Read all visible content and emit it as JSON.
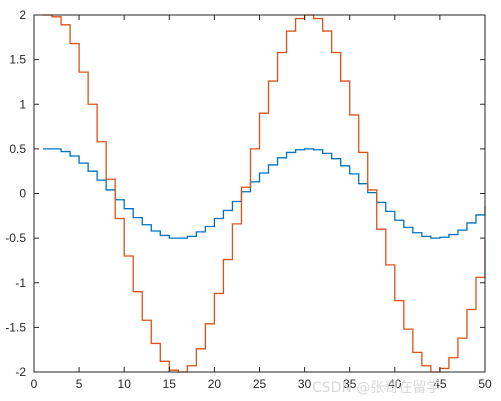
{
  "chart_data": {
    "type": "line",
    "style": "stairs",
    "x": [
      1,
      2,
      3,
      4,
      5,
      6,
      7,
      8,
      9,
      10,
      11,
      12,
      13,
      14,
      15,
      16,
      17,
      18,
      19,
      20,
      21,
      22,
      23,
      24,
      25,
      26,
      27,
      28,
      29,
      30,
      31,
      32,
      33,
      34,
      35,
      36,
      37,
      38,
      39,
      40,
      41,
      42,
      43,
      44,
      45,
      46,
      47,
      48,
      49,
      50
    ],
    "series": [
      {
        "color": "#0072BD",
        "values": [
          0.5,
          0.5,
          0.47,
          0.42,
          0.34,
          0.25,
          0.15,
          0.04,
          -0.07,
          -0.17,
          -0.27,
          -0.35,
          -0.42,
          -0.47,
          -0.5,
          -0.5,
          -0.48,
          -0.43,
          -0.37,
          -0.28,
          -0.19,
          -0.09,
          0.02,
          0.13,
          0.23,
          0.32,
          0.4,
          0.46,
          0.49,
          0.5,
          0.49,
          0.45,
          0.39,
          0.31,
          0.22,
          0.11,
          0.01,
          -0.1,
          -0.2,
          -0.3,
          -0.38,
          -0.44,
          -0.48,
          -0.5,
          -0.49,
          -0.46,
          -0.41,
          -0.33,
          -0.24,
          -0.14
        ]
      },
      {
        "color": "#D95319",
        "values": [
          2.0,
          1.98,
          1.89,
          1.68,
          1.36,
          1.0,
          0.58,
          0.16,
          -0.28,
          -0.7,
          -1.1,
          -1.42,
          -1.68,
          -1.88,
          -1.98,
          -2.0,
          -1.93,
          -1.74,
          -1.46,
          -1.12,
          -0.74,
          -0.34,
          0.07,
          0.5,
          0.9,
          1.26,
          1.58,
          1.82,
          1.96,
          2.0,
          1.96,
          1.82,
          1.58,
          1.26,
          0.88,
          0.46,
          0.04,
          -0.4,
          -0.8,
          -1.2,
          -1.52,
          -1.78,
          -1.93,
          -2.0,
          -1.96,
          -1.84,
          -1.62,
          -1.3,
          -0.94,
          -0.52
        ]
      }
    ],
    "xlim": [
      0,
      50
    ],
    "ylim": [
      -2,
      2
    ],
    "xticks": [
      0,
      5,
      10,
      15,
      20,
      25,
      30,
      35,
      40,
      45,
      50
    ],
    "xtick_labels": [
      "0",
      "5",
      "10",
      "15",
      "20",
      "25",
      "30",
      "35",
      "40",
      "45",
      "50"
    ],
    "yticks": [
      -2,
      -1.5,
      -1,
      -0.5,
      0,
      0.5,
      1,
      1.5,
      2
    ],
    "ytick_labels": [
      "-2",
      "-1.5",
      "-1",
      "-0.5",
      "0",
      "0.5",
      "1",
      "1.5",
      "2"
    ],
    "grid": false,
    "title": "",
    "xlabel": "",
    "ylabel": "",
    "colors": {
      "axis": "#262626",
      "background": "#ffffff",
      "watermark": "#d8d8d8"
    }
  },
  "watermark": {
    "text": "CSDN @张哥在留学"
  }
}
